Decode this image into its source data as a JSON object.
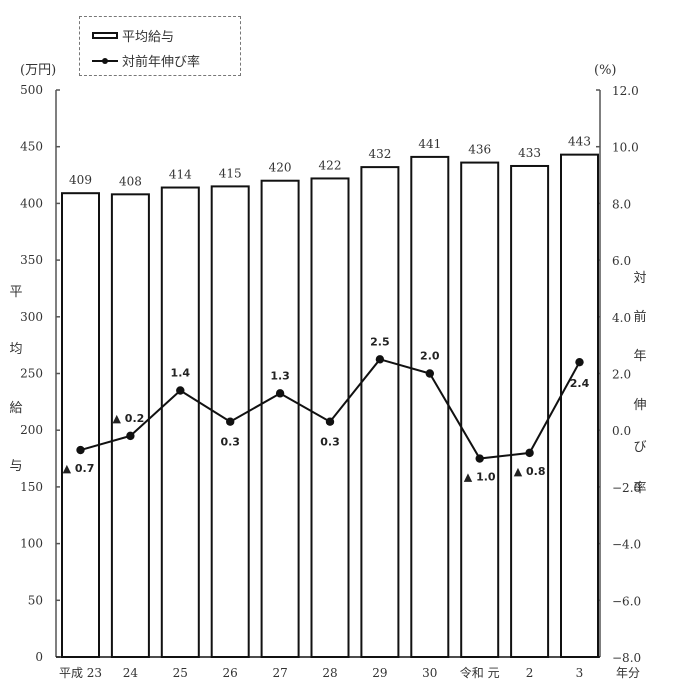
{
  "chart_data": {
    "type": "bar",
    "combo": "bar+line",
    "title": "",
    "categories": [
      "平成 23",
      "24",
      "25",
      "26",
      "27",
      "28",
      "29",
      "30",
      "令和 元",
      "2",
      "3"
    ],
    "x_suffix_label": "年分",
    "series": [
      {
        "name": "平均給与",
        "type": "bar",
        "axis": "left",
        "values": [
          409,
          408,
          414,
          415,
          420,
          422,
          432,
          441,
          436,
          433,
          443
        ],
        "labels": [
          "409",
          "408",
          "414",
          "415",
          "420",
          "422",
          "432",
          "441",
          "436",
          "433",
          "443"
        ]
      },
      {
        "name": "対前年伸び率",
        "type": "line",
        "axis": "right",
        "values": [
          -0.7,
          -0.2,
          1.4,
          0.3,
          1.3,
          0.3,
          2.5,
          2.0,
          -1.0,
          -0.8,
          2.4
        ],
        "labels": [
          "▲ 0.7",
          "▲ 0.2",
          "1.4",
          "0.3",
          "1.3",
          "0.3",
          "2.5",
          "2.0",
          "▲ 1.0",
          "▲ 0.8",
          "2.4"
        ]
      }
    ],
    "left_axis": {
      "unit": "(万円)",
      "label": "平均給与",
      "label_chars": [
        "平",
        "均",
        "給",
        "与"
      ],
      "ylim": [
        0,
        500
      ],
      "ticks": [
        "0",
        "50",
        "100",
        "150",
        "200",
        "250",
        "300",
        "350",
        "400",
        "450",
        "500"
      ]
    },
    "right_axis": {
      "unit": "(%)",
      "label": "対前年伸び率",
      "label_chars": [
        "対",
        "前",
        "年",
        "伸",
        "び",
        "率"
      ],
      "ylim": [
        -8.0,
        12.0
      ],
      "ticks": [
        "-8.0",
        "-6.0",
        "-4.0",
        "-2.0",
        "0.0",
        "2.0",
        "4.0",
        "6.0",
        "8.0",
        "10.0",
        "12.0"
      ]
    },
    "legend": {
      "position": "top-left",
      "entries": [
        "平均給与",
        "対前年伸び率"
      ]
    },
    "grid": false
  },
  "legend": {
    "bar_label": "平均給与",
    "line_label": "対前年伸び率"
  },
  "colors": {
    "bar_fill": "#ffffff",
    "bar_stroke": "#111111",
    "line": "#111111",
    "axis": "#555555",
    "text": "#333333"
  }
}
